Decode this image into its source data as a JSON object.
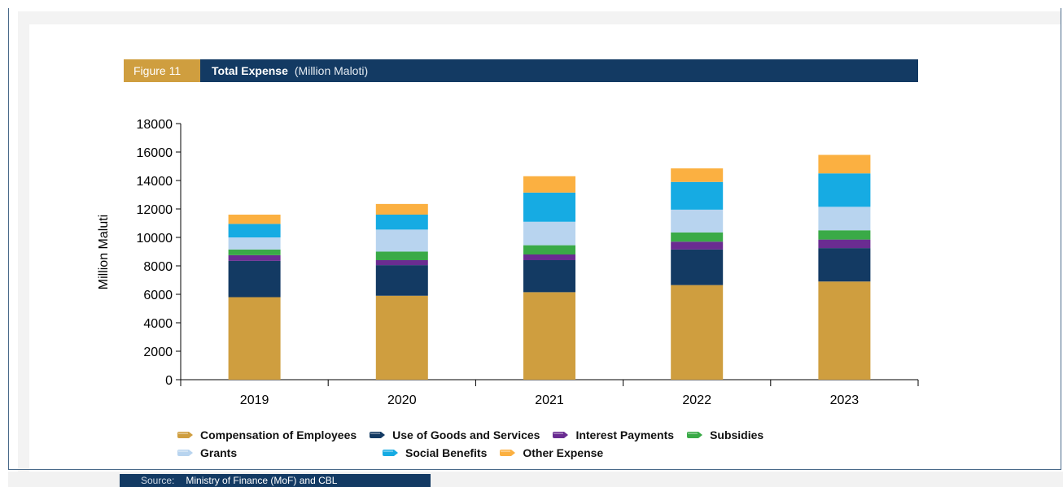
{
  "figure": {
    "label": "Figure 11",
    "title": "Total Expense",
    "unit": "(Million Maloti)"
  },
  "source": {
    "label": "Source:",
    "text": "Ministry of Finance (MoF) and CBL"
  },
  "chart_data": {
    "type": "bar",
    "stacked": true,
    "categories": [
      "2019",
      "2020",
      "2021",
      "2022",
      "2023"
    ],
    "ylabel": "Million Maluti",
    "xlabel": "",
    "ylim": [
      0,
      18000
    ],
    "yticks": [
      0,
      2000,
      4000,
      6000,
      8000,
      10000,
      12000,
      14000,
      16000,
      18000
    ],
    "grid": false,
    "legend_position": "bottom",
    "series": [
      {
        "name": "Compensation of Employees",
        "color": "#cf9e3f",
        "values": [
          5800,
          5900,
          6150,
          6650,
          6900
        ]
      },
      {
        "name": "Use of Goods and Services",
        "color": "#133a63",
        "values": [
          2550,
          2150,
          2250,
          2500,
          2350
        ]
      },
      {
        "name": "Interest Payments",
        "color": "#6a2c91",
        "values": [
          400,
          350,
          400,
          550,
          600
        ]
      },
      {
        "name": "Subsidies",
        "color": "#3aaa47",
        "values": [
          400,
          600,
          650,
          650,
          650
        ]
      },
      {
        "name": "Grants",
        "color": "#b8d4ef",
        "values": [
          850,
          1550,
          1650,
          1600,
          1650
        ]
      },
      {
        "name": "Social Benefits",
        "color": "#16abe3",
        "values": [
          950,
          1050,
          2050,
          1950,
          2350
        ]
      },
      {
        "name": "Other Expense",
        "color": "#fbb041",
        "values": [
          650,
          750,
          1150,
          950,
          1300
        ]
      }
    ]
  }
}
